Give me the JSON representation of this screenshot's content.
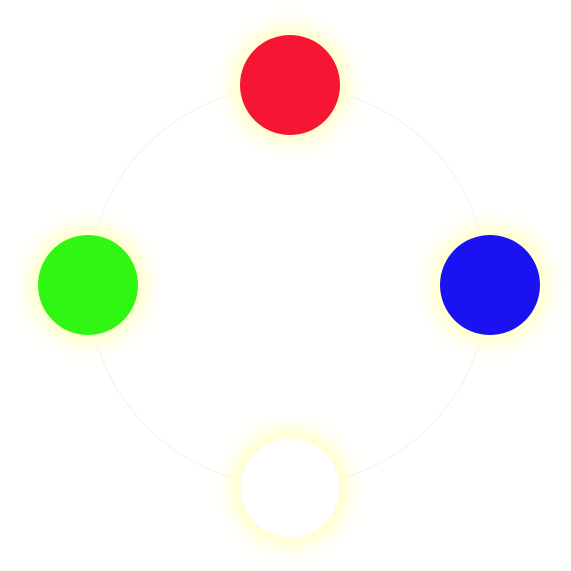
{
  "orbs": [
    {
      "id": "red",
      "position": "top",
      "color": "#f61532"
    },
    {
      "id": "green",
      "position": "left",
      "color": "#2ff613"
    },
    {
      "id": "blue",
      "position": "right",
      "color": "#1a12f3"
    },
    {
      "id": "white",
      "position": "bottom",
      "color": "#ffffff"
    }
  ],
  "ring_color": "#f1f1f1",
  "glow_color": "#ffffc8"
}
